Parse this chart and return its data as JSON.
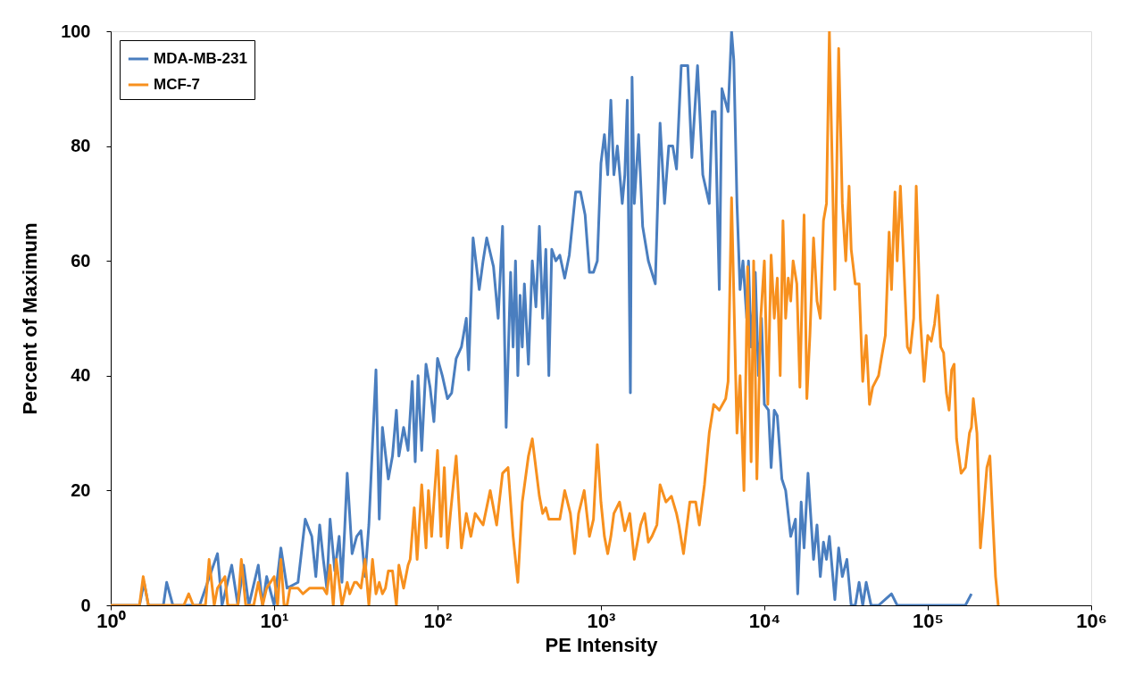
{
  "chart_data": {
    "type": "line",
    "xlabel": "PE Intensity",
    "ylabel": "Percent of Maximum",
    "log": "x",
    "xlim": [
      1,
      1000000
    ],
    "ylim": [
      0,
      100
    ],
    "xticks": [
      {
        "value": 1,
        "label": "10⁰"
      },
      {
        "value": 10,
        "label": "10¹"
      },
      {
        "value": 100,
        "label": "10²"
      },
      {
        "value": 1000,
        "label": "10³"
      },
      {
        "value": 10000,
        "label": "10⁴"
      },
      {
        "value": 100000,
        "label": "10⁵"
      },
      {
        "value": 1000000,
        "label": "10⁶"
      }
    ],
    "yticks": [
      0,
      20,
      40,
      60,
      80,
      100
    ],
    "grid": false,
    "legend": "top left",
    "line_style": "solid",
    "marker": "none",
    "series": [
      {
        "name": "MDA-MB-231",
        "color": "#4a7ebf",
        "x": [
          1,
          1.5,
          1.6,
          1.7,
          2.1,
          2.2,
          2.4,
          3.5,
          4.5,
          4.8,
          5.5,
          6,
          6.5,
          7,
          8,
          8.5,
          9,
          10,
          11,
          12,
          14,
          15.5,
          17,
          18,
          19,
          20,
          21,
          22,
          23.5,
          25,
          26,
          27,
          28,
          30,
          32,
          34,
          36,
          38,
          40,
          42,
          44,
          46,
          50,
          53,
          56,
          58,
          62,
          66,
          70,
          73,
          76,
          80,
          85,
          90,
          95,
          100,
          107,
          115,
          122,
          130,
          140,
          150,
          155,
          165,
          180,
          190,
          200,
          220,
          235,
          250,
          263,
          280,
          290,
          300,
          310,
          320,
          330,
          340,
          360,
          380,
          400,
          420,
          440,
          460,
          480,
          500,
          530,
          560,
          600,
          640,
          700,
          750,
          800,
          850,
          900,
          950,
          1000,
          1050,
          1100,
          1150,
          1200,
          1260,
          1350,
          1400,
          1450,
          1514,
          1550,
          1600,
          1700,
          1800,
          1950,
          2150,
          2300,
          2450,
          2600,
          2750,
          2900,
          3100,
          3400,
          3600,
          3900,
          4200,
          4600,
          4800,
          5000,
          5300,
          5500,
          6000,
          6300,
          6500,
          6800,
          7100,
          7400,
          7800,
          8000,
          8300,
          8800,
          9200,
          9600,
          10000,
          10600,
          11000,
          11500,
          12000,
          12800,
          13500,
          14500,
          15500,
          16000,
          16800,
          17500,
          18500,
          20000,
          21000,
          22000,
          23000,
          24000,
          25000,
          27000,
          28500,
          30000,
          32000,
          34000,
          36000,
          38000,
          40000,
          42000,
          45000,
          50000,
          60000,
          65000,
          100000,
          170000,
          185000
        ],
        "values": [
          0,
          0,
          4,
          0,
          0,
          4,
          0,
          0,
          9,
          0,
          7,
          0,
          7,
          0,
          7,
          0,
          5,
          0,
          10,
          3,
          4,
          15,
          12,
          5,
          14,
          8,
          3,
          15,
          6,
          12,
          4,
          13,
          23,
          9,
          12,
          13,
          5,
          14,
          28,
          41,
          15,
          31,
          22,
          26,
          34,
          26,
          31,
          27,
          39,
          25,
          40,
          27,
          42,
          38,
          32,
          43,
          40,
          36,
          37,
          43,
          45,
          50,
          41,
          64,
          55,
          60,
          64,
          59,
          50,
          66,
          31,
          58,
          45,
          60,
          40,
          54,
          45,
          56,
          42,
          60,
          52,
          66,
          50,
          62,
          40,
          62,
          60,
          61,
          57,
          61,
          72,
          72,
          68,
          58,
          58,
          60,
          77,
          82,
          75,
          88,
          75,
          80,
          70,
          75,
          88,
          37,
          92,
          70,
          82,
          66,
          60,
          56,
          84,
          70,
          80,
          80,
          76,
          94,
          94,
          78,
          94,
          75,
          70,
          86,
          86,
          55,
          90,
          86,
          100,
          95,
          70,
          55,
          60,
          50,
          60,
          45,
          58,
          40,
          50,
          35,
          34,
          24,
          34,
          33,
          22,
          20,
          12,
          15,
          2,
          18,
          10,
          23,
          8,
          14,
          5,
          11,
          8,
          12,
          1,
          10,
          5,
          8,
          0,
          0,
          4,
          0,
          4,
          0,
          0,
          2,
          0,
          0,
          0,
          2
        ]
      },
      {
        "name": "MCF-7",
        "color": "#f7901e",
        "x": [
          1,
          1.5,
          1.58,
          1.7,
          2.8,
          3,
          3.2,
          3.8,
          4,
          4.3,
          4.5,
          5,
          5.2,
          6,
          6.3,
          6.7,
          7.5,
          8,
          8.5,
          9,
          10,
          10.5,
          11,
          11.5,
          12,
          12.5,
          14,
          15,
          16.5,
          20,
          21,
          22,
          23,
          24,
          26,
          28,
          29,
          31,
          32,
          34,
          36,
          38,
          40,
          42,
          44,
          46,
          48,
          50,
          53,
          56,
          58,
          62,
          66,
          68,
          72,
          75,
          80,
          85,
          88,
          92,
          95,
          100,
          105,
          110,
          115,
          120,
          130,
          140,
          150,
          160,
          170,
          190,
          210,
          230,
          250,
          270,
          290,
          310,
          330,
          360,
          380,
          420,
          440,
          460,
          480,
          520,
          560,
          600,
          650,
          690,
          730,
          790,
          850,
          900,
          950,
          1000,
          1050,
          1100,
          1150,
          1200,
          1300,
          1400,
          1500,
          1600,
          1750,
          1850,
          1950,
          2050,
          2200,
          2300,
          2500,
          2700,
          2900,
          3000,
          3200,
          3500,
          3800,
          4000,
          4300,
          4600,
          4900,
          5300,
          5800,
          6000,
          6300,
          6800,
          7100,
          7500,
          7900,
          8300,
          8600,
          9000,
          9500,
          10000,
          10500,
          11000,
          11500,
          12000,
          12500,
          13000,
          13500,
          14000,
          14500,
          15000,
          15800,
          16500,
          17500,
          18200,
          19000,
          20000,
          21000,
          22000,
          23000,
          24000,
          25000,
          27000,
          28500,
          30000,
          31500,
          33000,
          34000,
          36000,
          38000,
          40000,
          42000,
          44000,
          46000,
          50000,
          52000,
          55000,
          58000,
          60000,
          63000,
          65000,
          68000,
          75000,
          78000,
          82000,
          85000,
          90000,
          95000,
          100000,
          105000,
          110000,
          115000,
          120000,
          125000,
          130000,
          135000,
          140000,
          145000,
          150000,
          160000,
          170000,
          180000,
          185000,
          190000,
          200000,
          210000,
          220000,
          230000,
          240000,
          250000,
          260000,
          270000
        ],
        "values": [
          0,
          0,
          5,
          0,
          0,
          2,
          0,
          0,
          8,
          0,
          3,
          5,
          0,
          0,
          8,
          0,
          0,
          4,
          0,
          3,
          5,
          0,
          8,
          0,
          0,
          3,
          3,
          2,
          3,
          3,
          2,
          7,
          0,
          8,
          0,
          4,
          2,
          4,
          4,
          3,
          8,
          0,
          8,
          2,
          4,
          2,
          3,
          6,
          6,
          0,
          7,
          3,
          7,
          8,
          17,
          8,
          21,
          10,
          20,
          12,
          18,
          27,
          12,
          24,
          10,
          16,
          26,
          10,
          16,
          12,
          16,
          14,
          20,
          14,
          23,
          24,
          12,
          4,
          18,
          26,
          29,
          19,
          16,
          17,
          15,
          15,
          15,
          20,
          16,
          9,
          16,
          20,
          12,
          15,
          28,
          18,
          12,
          9,
          12,
          16,
          18,
          13,
          16,
          8,
          14,
          16,
          11,
          12,
          14,
          21,
          18,
          19,
          16,
          14,
          9,
          18,
          18,
          14,
          21,
          30,
          35,
          34,
          36,
          39,
          71,
          30,
          40,
          20,
          59,
          25,
          60,
          22,
          50,
          60,
          35,
          61,
          50,
          57,
          40,
          67,
          50,
          57,
          53,
          60,
          56,
          38,
          68,
          36,
          47,
          64,
          53,
          50,
          67,
          70,
          100,
          55,
          97,
          70,
          60,
          73,
          62,
          56,
          56,
          39,
          47,
          35,
          38,
          40,
          43,
          47,
          65,
          55,
          72,
          60,
          73,
          45,
          44,
          50,
          73,
          50,
          39,
          47,
          46,
          49,
          54,
          45,
          44,
          37,
          34,
          41,
          42,
          29,
          23,
          24,
          30,
          31,
          36,
          30,
          10,
          17,
          24,
          26,
          15,
          5,
          0
        ]
      }
    ]
  }
}
